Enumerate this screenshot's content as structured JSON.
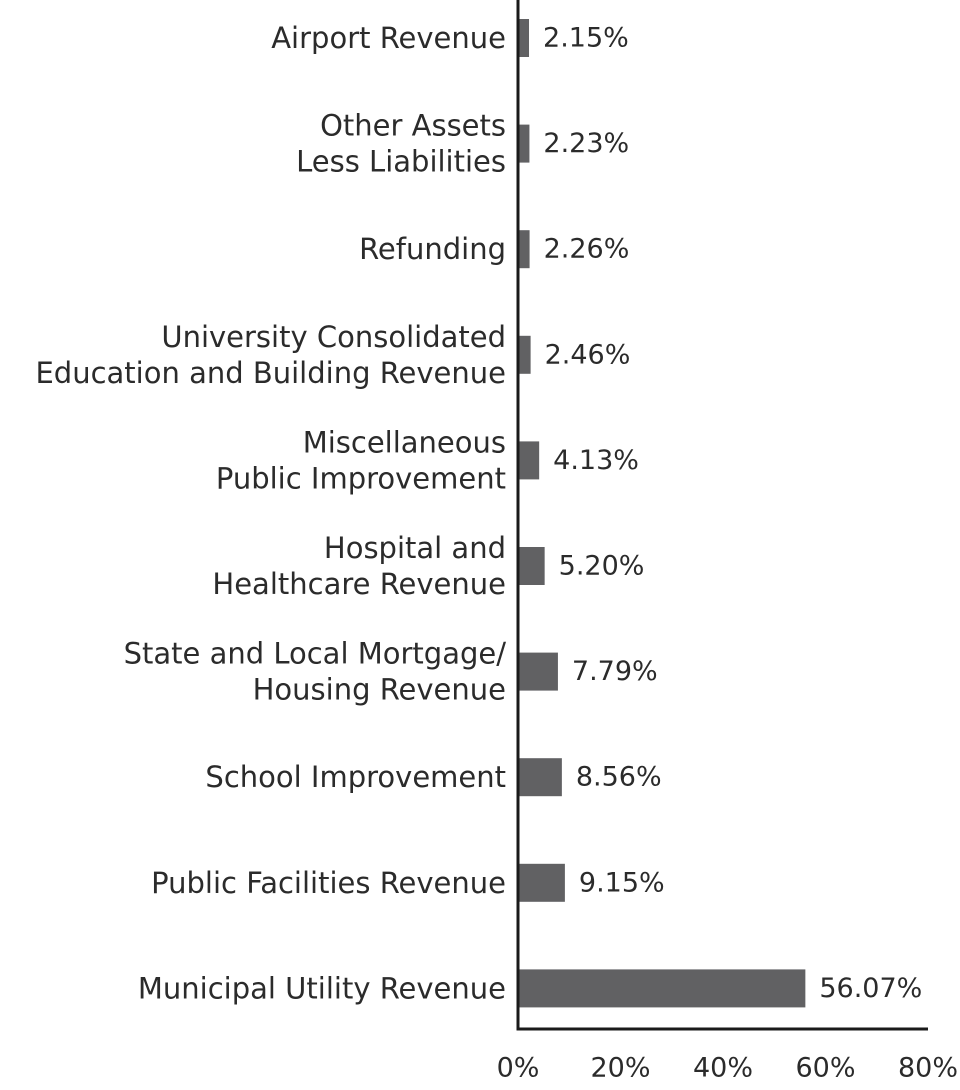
{
  "chart_data": {
    "type": "bar",
    "orientation": "horizontal",
    "categories": [
      "Airport Revenue",
      "Other Assets Less Liabilities",
      "Refunding",
      "University Consolidated Education and Building Revenue",
      "Miscellaneous Public Improvement",
      "Hospital and Healthcare Revenue",
      "State and Local Mortgage/ Housing Revenue",
      "School Improvement",
      "Public Facilities Revenue",
      "Municipal Utility Revenue"
    ],
    "category_lines": [
      [
        "Airport Revenue"
      ],
      [
        "Other Assets",
        "Less Liabilities"
      ],
      [
        "Refunding"
      ],
      [
        "University Consolidated",
        "Education and Building Revenue"
      ],
      [
        "Miscellaneous",
        "Public Improvement"
      ],
      [
        "Hospital and",
        "Healthcare Revenue"
      ],
      [
        "State and Local Mortgage/",
        "Housing Revenue"
      ],
      [
        "School Improvement"
      ],
      [
        "Public Facilities Revenue"
      ],
      [
        "Municipal Utility Revenue"
      ]
    ],
    "values": [
      2.15,
      2.23,
      2.26,
      2.46,
      4.13,
      5.2,
      7.79,
      8.56,
      9.15,
      56.07
    ],
    "value_labels": [
      "2.15%",
      "2.23%",
      "2.26%",
      "2.46%",
      "4.13%",
      "5.20%",
      "7.79%",
      "8.56%",
      "9.15%",
      "56.07%"
    ],
    "xlim": [
      0,
      80
    ],
    "xticks": [
      0,
      20,
      40,
      60,
      80
    ],
    "xtick_labels": [
      "0%",
      "20%",
      "40%",
      "60%",
      "80%"
    ],
    "bar_color": "#616163",
    "grid": false,
    "title": "",
    "xlabel": "",
    "ylabel": ""
  }
}
